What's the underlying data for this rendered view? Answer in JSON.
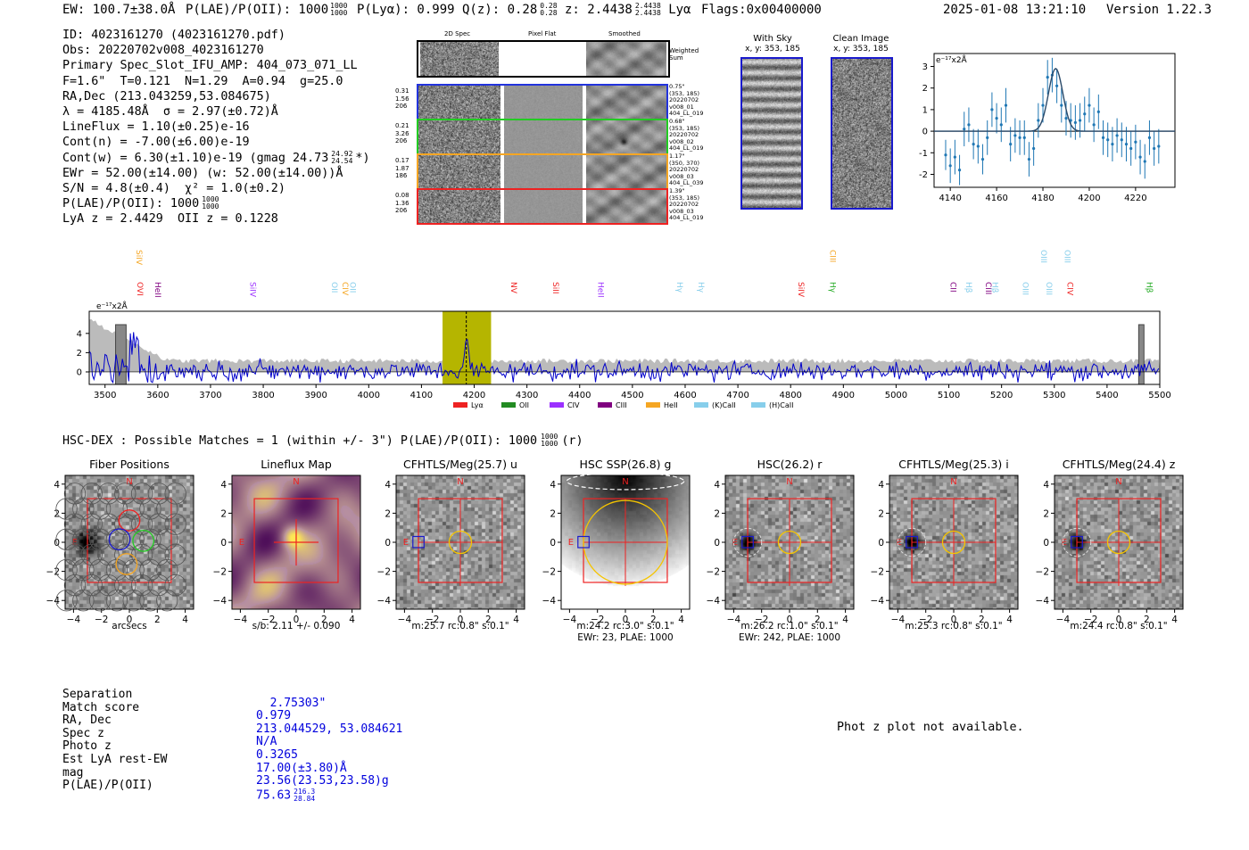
{
  "header": {
    "ew": "EW: 100.7±38.0Å",
    "plae_label": "P(LAE)/P(OII): 1000",
    "plae_sup": "1000",
    "plae_sub": "1000",
    "plya": "P(Lyα): 0.999",
    "qz_label": "Q(z): 0.28",
    "qz_sup": "0.28",
    "qz_sub": "0.28",
    "z_label": "z: 2.4438",
    "z_sup": "2.4438",
    "z_sub": "2.4438",
    "line": "Lyα",
    "flags": "Flags:0x00400000",
    "datetime": "2025-01-08 13:21:10",
    "version": "Version 1.22.3"
  },
  "info_lines": [
    "ID: 4023161270 (4023161270.pdf)",
    "Obs: 20220702v008_4023161270",
    "Primary Spec_Slot_IFU_AMP: 404_073_071_LL",
    "F=1.6\"  T=0.121  N=1.29  A=0.94  g=25.0",
    "RA,Dec (213.043259,53.084675)",
    "λ = 4185.48Å  σ = 2.97(±0.72)Å",
    "LineFlux = 1.10(±0.25)e-16",
    "Cont(n) = -7.00(±6.00)e-19",
    "Cont(w) = 6.30(±1.10)e-19 (gmag 24.73",
    "EWr = 52.00(±14.00) (w: 52.00(±14.00))Å",
    "S/N = 4.8(±0.4)  χ² = 1.0(±0.2)",
    "P(LAE)/P(OII): 1000",
    "LyA z = 2.4429  OII z = 0.1228"
  ],
  "info_extra": {
    "gmag_sup": "24.92",
    "gmag_sub": "24.54",
    "gmag_tail": "*)",
    "plae_sup": "1000",
    "plae_sub": "1000"
  },
  "cutouts": {
    "col_headers": [
      "2D Spec",
      "Pixel Flat",
      "Smoothed"
    ],
    "weighted_sum": "Weighted\nSum",
    "rows": [
      {
        "left": "0.31\n1.56\n206",
        "right": "0.75\"\n(353, 185)\n20220702\nv008_01\n404_LL_019",
        "color": "#2233dd"
      },
      {
        "left": "0.21\n3.26\n206",
        "right": "0.68\"\n(353, 185)\n20220702\nv008_02\n404_LL_019",
        "color": "#22cc22"
      },
      {
        "left": "0.17\n1.87\n186",
        "right": "1.17\"\n(350, 370)\n20220702\nv008_03\n404_LL_039",
        "color": "#f5a623"
      },
      {
        "left": "0.08\n1.36\n206",
        "right": "1.39\"\n(353, 185)\n20220702\nv008_03\n404_LL_019",
        "color": "#ee2222"
      }
    ]
  },
  "sky": {
    "with_sky_title": "With Sky",
    "with_sky_coords": "x, y: 353, 185",
    "clean_title": "Clean Image",
    "clean_coords": "x, y: 353, 185"
  },
  "zoom_chart": {
    "unit": "e⁻¹⁷x2Å"
  },
  "spectrum": {
    "unit": "e⁻¹⁷x2Å",
    "line_labels": [
      {
        "text": "SiIV",
        "x": 3555,
        "row": 0,
        "color": "#f5a623"
      },
      {
        "text": "OVI",
        "x": 3556,
        "row": 1,
        "color": "#ee2222"
      },
      {
        "text": "HeII",
        "x": 3590,
        "row": 1,
        "color": "#800080"
      },
      {
        "text": "SiIV",
        "x": 3770,
        "row": 1,
        "color": "#9b30ff"
      },
      {
        "text": "OII",
        "x": 3925,
        "row": 1,
        "color": "#87ceeb"
      },
      {
        "text": "CIV",
        "x": 3945,
        "row": 1,
        "color": "#f5a623"
      },
      {
        "text": "OII",
        "x": 3960,
        "row": 1,
        "color": "#87ceeb"
      },
      {
        "text": "NV",
        "x": 4265,
        "row": 1,
        "color": "#ee2222"
      },
      {
        "text": "SiII",
        "x": 4345,
        "row": 1,
        "color": "#ee2222"
      },
      {
        "text": "HeII",
        "x": 4430,
        "row": 1,
        "color": "#9b30ff"
      },
      {
        "text": "Hγ",
        "x": 4580,
        "row": 1,
        "color": "#87ceeb"
      },
      {
        "text": "Hγ",
        "x": 4620,
        "row": 1,
        "color": "#87ceeb"
      },
      {
        "text": "SiIV",
        "x": 4810,
        "row": 1,
        "color": "#ee2222"
      },
      {
        "text": "CIII",
        "x": 4870,
        "row": 0,
        "color": "#f5a623"
      },
      {
        "text": "Hγ",
        "x": 4870,
        "row": 1,
        "color": "#22aa22"
      },
      {
        "text": "CII",
        "x": 5098,
        "row": 1,
        "color": "#800080"
      },
      {
        "text": "Hβ",
        "x": 5128,
        "row": 1,
        "color": "#87ceeb"
      },
      {
        "text": "CIII",
        "x": 5165,
        "row": 1,
        "color": "#800080"
      },
      {
        "text": "Hβ",
        "x": 5178,
        "row": 1,
        "color": "#87ceeb"
      },
      {
        "text": "OIII",
        "x": 5235,
        "row": 1,
        "color": "#87ceeb"
      },
      {
        "text": "OIII",
        "x": 5270,
        "row": 0,
        "color": "#87ceeb"
      },
      {
        "text": "OIII",
        "x": 5280,
        "row": 1,
        "color": "#87ceeb"
      },
      {
        "text": "OIII",
        "x": 5315,
        "row": 0,
        "color": "#87ceeb"
      },
      {
        "text": "CIV",
        "x": 5320,
        "row": 1,
        "color": "#ee2222"
      },
      {
        "text": "Hβ",
        "x": 5470,
        "row": 1,
        "color": "#22aa22"
      }
    ],
    "legend": [
      {
        "label": "Lyα",
        "color": "#ee2222"
      },
      {
        "label": "OII",
        "color": "#228b22"
      },
      {
        "label": "CIV",
        "color": "#9b30ff"
      },
      {
        "label": "CIII",
        "color": "#800080"
      },
      {
        "label": "HeII",
        "color": "#f5a623"
      },
      {
        "label": "(K)CaII",
        "color": "#87ceeb"
      },
      {
        "label": "(H)CaII",
        "color": "#87ceeb"
      }
    ]
  },
  "hsc": {
    "title": "HSC-DEX : Possible Matches = 1 (within +/- 3\")  P(LAE)/P(OII): 1000",
    "sup": "1000",
    "sub": "1000",
    "tail": "(r)"
  },
  "panels": [
    {
      "title": "Fiber Positions",
      "sub1": "arcsecs",
      "sub2": ""
    },
    {
      "title": "Lineflux Map",
      "sub1": "s/b: 2.11 +/- 0.090",
      "sub2": ""
    },
    {
      "title": "CFHTLS/Meg(25.7) u",
      "sub1": "m:25.7 rc:0.8\"  s:0.1\"",
      "sub2": ""
    },
    {
      "title": "HSC SSP(26.8) g",
      "sub1": "m:24.2 rc:3.0\"  s:0.1\"",
      "sub2": "EWr: 23, PLAE: 1000"
    },
    {
      "title": "HSC(26.2) r",
      "sub1": "m:26.2 rc:1.0\"  s:0.1\"",
      "sub2": "EWr: 242, PLAE: 1000"
    },
    {
      "title": "CFHTLS/Meg(25.3) i",
      "sub1": "m:25.3 rc:0.8\"  s:0.1\"",
      "sub2": ""
    },
    {
      "title": "CFHTLS/Meg(24.4) z",
      "sub1": "m:24.4 rc:0.8\"  s:0.1\"",
      "sub2": ""
    }
  ],
  "panel_marks": {
    "north": "N",
    "east": "E"
  },
  "match": {
    "labels": "Separation\nMatch score\nRA, Dec\nSpec z\nPhoto z\nEst LyA rest-EW\nmag\nP(LAE)/P(OII)",
    "values": "2.75303\"\n0.979\n213.044529, 53.084621\nN/A\n0.3265\n17.00(±3.80)Å\n23.56(23.53,23.58)g\n75.63",
    "plae_sup": "216.3",
    "plae_sub": "28.84"
  },
  "photz_msg": "Phot z plot not available.",
  "chart_data": [
    {
      "type": "scatter",
      "name": "emission line zoom",
      "xlabel": "",
      "ylabel": "e⁻¹⁷x2Å",
      "xlim": [
        4133,
        4237
      ],
      "ylim": [
        -2.6,
        3.6
      ],
      "xticks": [
        4140,
        4160,
        4180,
        4200,
        4220
      ],
      "yticks": [
        -2,
        -1,
        0,
        1,
        2,
        3
      ],
      "points": [
        [
          4138,
          -1.1,
          0.7
        ],
        [
          4140,
          -1.6,
          0.8
        ],
        [
          4142,
          -1.2,
          0.8
        ],
        [
          4144,
          -1.8,
          0.7
        ],
        [
          4146,
          0.1,
          0.8
        ],
        [
          4148,
          0.3,
          0.8
        ],
        [
          4150,
          -0.6,
          0.7
        ],
        [
          4152,
          -0.7,
          0.8
        ],
        [
          4154,
          -1.3,
          0.7
        ],
        [
          4156,
          -0.3,
          0.8
        ],
        [
          4158,
          1.0,
          0.8
        ],
        [
          4160,
          0.6,
          0.7
        ],
        [
          4162,
          0.3,
          0.8
        ],
        [
          4164,
          1.2,
          0.8
        ],
        [
          4166,
          -0.6,
          0.8
        ],
        [
          4168,
          -0.2,
          0.8
        ],
        [
          4170,
          -0.3,
          0.8
        ],
        [
          4172,
          -0.3,
          0.8
        ],
        [
          4174,
          -1.3,
          0.8
        ],
        [
          4176,
          -0.8,
          0.8
        ],
        [
          4178,
          0.5,
          0.8
        ],
        [
          4180,
          1.2,
          0.8
        ],
        [
          4182,
          2.5,
          0.8
        ],
        [
          4184,
          2.6,
          0.8
        ],
        [
          4186,
          2.1,
          0.8
        ],
        [
          4188,
          1.2,
          0.8
        ],
        [
          4190,
          0.6,
          0.8
        ],
        [
          4192,
          0.5,
          0.8
        ],
        [
          4194,
          0.4,
          0.8
        ],
        [
          4196,
          0.5,
          0.8
        ],
        [
          4198,
          0.8,
          0.8
        ],
        [
          4200,
          1.2,
          0.8
        ],
        [
          4202,
          0.3,
          0.8
        ],
        [
          4204,
          0.9,
          0.8
        ],
        [
          4206,
          -0.3,
          0.8
        ],
        [
          4208,
          -0.4,
          0.8
        ],
        [
          4210,
          -0.6,
          0.8
        ],
        [
          4212,
          -0.2,
          0.8
        ],
        [
          4214,
          -0.4,
          0.8
        ],
        [
          4216,
          -0.6,
          0.8
        ],
        [
          4218,
          -0.8,
          0.8
        ],
        [
          4220,
          -0.5,
          0.8
        ],
        [
          4222,
          -1.2,
          0.8
        ],
        [
          4224,
          -1.4,
          0.8
        ],
        [
          4226,
          -0.3,
          0.8
        ],
        [
          4228,
          -0.8,
          0.8
        ],
        [
          4230,
          -0.7,
          0.8
        ]
      ],
      "fit": {
        "center": 4185.5,
        "amp": 2.9,
        "sigma": 3.1
      }
    },
    {
      "type": "line",
      "name": "full spectrum",
      "xlabel": "",
      "ylabel": "e⁻¹⁷x2Å",
      "xlim": [
        3470,
        5500
      ],
      "ylim": [
        -1.3,
        6.3
      ],
      "xticks": [
        3500,
        3600,
        3700,
        3800,
        3900,
        4000,
        4100,
        4200,
        4300,
        4400,
        4500,
        4600,
        4700,
        4800,
        4900,
        5000,
        5100,
        5200,
        5300,
        5400,
        5500
      ],
      "yticks": [
        0,
        2,
        4
      ],
      "highlight": [
        4140,
        4232
      ],
      "line_center": 4185,
      "spectrum_color": "#0000cc",
      "noise_color": "#bbbbbb",
      "highlight_color": "#b5b500"
    }
  ]
}
